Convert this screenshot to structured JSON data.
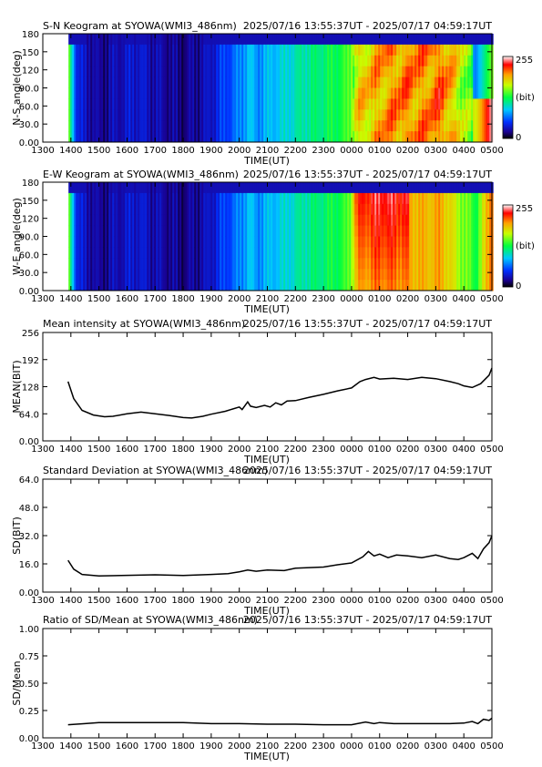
{
  "x_ticks": [
    "1300",
    "1400",
    "1500",
    "1600",
    "1700",
    "1800",
    "1900",
    "2000",
    "2100",
    "2200",
    "2300",
    "0000",
    "0100",
    "0200",
    "0300",
    "0400",
    "0500"
  ],
  "x_label": "TIME(UT)",
  "time_range": "2025/07/16 13:55:37UT - 2025/07/17 04:59:17UT",
  "colorbar": {
    "max": "255",
    "unit": "(bit)",
    "min": "0"
  },
  "chart_data": [
    {
      "type": "heatmap",
      "title": "S-N Keogram at SYOWA(WMI3_486nm)",
      "ylabel": "N-S angle(deg)",
      "y_ticks": [
        "180",
        "150",
        "120",
        "90.0",
        "60.0",
        "30.0",
        "0.00"
      ],
      "ylim": [
        0,
        180
      ],
      "xlim": [
        "1300",
        "0500"
      ],
      "data_start": "1355",
      "colormap": "rainbow 0-255",
      "profile": [
        [
          13.9,
          140
        ],
        [
          14.2,
          40
        ],
        [
          15.0,
          20
        ],
        [
          15.5,
          28
        ],
        [
          16.3,
          38
        ],
        [
          17.0,
          28
        ],
        [
          18.0,
          18
        ],
        [
          18.8,
          30
        ],
        [
          19.5,
          55
        ],
        [
          20.0,
          70
        ],
        [
          20.3,
          90
        ],
        [
          20.6,
          75
        ],
        [
          21.0,
          85
        ],
        [
          21.6,
          95
        ],
        [
          22.0,
          105
        ],
        [
          23.0,
          120
        ],
        [
          23.8,
          135
        ],
        [
          24.2,
          180
        ],
        [
          25.0,
          195
        ],
        [
          25.8,
          205
        ],
        [
          26.5,
          200
        ],
        [
          27.2,
          210
        ],
        [
          27.8,
          170
        ],
        [
          28.4,
          130
        ],
        [
          29.0,
          215
        ]
      ]
    },
    {
      "type": "heatmap",
      "title": "E-W Keogram at SYOWA(WMI3_486nm)",
      "ylabel": "W-E angle(deg)",
      "y_ticks": [
        "180",
        "150",
        "120",
        "90.0",
        "60.0",
        "30.0",
        "0.00"
      ],
      "ylim": [
        0,
        180
      ],
      "xlim": [
        "1300",
        "0500"
      ],
      "data_start": "1355",
      "colormap": "rainbow 0-255",
      "profile": [
        [
          13.9,
          140
        ],
        [
          14.2,
          40
        ],
        [
          15.0,
          20
        ],
        [
          15.5,
          28
        ],
        [
          16.3,
          38
        ],
        [
          17.0,
          28
        ],
        [
          18.0,
          18
        ],
        [
          18.8,
          30
        ],
        [
          19.5,
          55
        ],
        [
          20.0,
          70
        ],
        [
          20.3,
          90
        ],
        [
          20.6,
          75
        ],
        [
          21.0,
          85
        ],
        [
          21.6,
          95
        ],
        [
          22.0,
          105
        ],
        [
          23.0,
          120
        ],
        [
          23.8,
          135
        ],
        [
          24.2,
          190
        ],
        [
          25.0,
          205
        ],
        [
          25.8,
          200
        ],
        [
          26.5,
          190
        ],
        [
          27.2,
          195
        ],
        [
          27.8,
          160
        ],
        [
          28.4,
          130
        ],
        [
          29.0,
          220
        ]
      ]
    },
    {
      "type": "line",
      "title": "Mean intensity at SYOWA(WMI3_486nm)",
      "ylabel": "MEAN(BIT)",
      "y_ticks": [
        "256",
        "192",
        "128",
        "64.0",
        "0.00"
      ],
      "ylim": [
        0,
        256
      ],
      "series": [
        {
          "values": [
            [
              13.9,
              140
            ],
            [
              14.1,
              100
            ],
            [
              14.4,
              72
            ],
            [
              14.8,
              61
            ],
            [
              15.2,
              57
            ],
            [
              15.5,
              58
            ],
            [
              16.0,
              64
            ],
            [
              16.5,
              68
            ],
            [
              17.0,
              64
            ],
            [
              17.5,
              60
            ],
            [
              18.0,
              55
            ],
            [
              18.3,
              54
            ],
            [
              18.7,
              58
            ],
            [
              19.0,
              63
            ],
            [
              19.5,
              70
            ],
            [
              20.0,
              80
            ],
            [
              20.1,
              74
            ],
            [
              20.3,
              92
            ],
            [
              20.4,
              82
            ],
            [
              20.6,
              79
            ],
            [
              20.9,
              84
            ],
            [
              21.1,
              80
            ],
            [
              21.3,
              90
            ],
            [
              21.5,
              85
            ],
            [
              21.7,
              94
            ],
            [
              22.0,
              95
            ],
            [
              22.5,
              103
            ],
            [
              23.0,
              110
            ],
            [
              23.5,
              118
            ],
            [
              24.0,
              125
            ],
            [
              24.3,
              140
            ],
            [
              24.5,
              145
            ],
            [
              24.8,
              150
            ],
            [
              25.0,
              146
            ],
            [
              25.5,
              148
            ],
            [
              26.0,
              145
            ],
            [
              26.5,
              150
            ],
            [
              27.0,
              147
            ],
            [
              27.5,
              140
            ],
            [
              27.8,
              135
            ],
            [
              28.0,
              130
            ],
            [
              28.3,
              126
            ],
            [
              28.6,
              135
            ],
            [
              28.9,
              155
            ],
            [
              29.0,
              172
            ]
          ]
        }
      ]
    },
    {
      "type": "line",
      "title": "Standard Deviation at SYOWA(WMI3_486nm)",
      "ylabel": "SD(BIT)",
      "y_ticks": [
        "64.0",
        "48.0",
        "32.0",
        "16.0",
        "0.00"
      ],
      "ylim": [
        0,
        64
      ],
      "series": [
        {
          "values": [
            [
              13.9,
              18
            ],
            [
              14.1,
              13
            ],
            [
              14.4,
              10
            ],
            [
              15.0,
              9.2
            ],
            [
              16.0,
              9.5
            ],
            [
              17.0,
              9.8
            ],
            [
              18.0,
              9.4
            ],
            [
              19.0,
              10
            ],
            [
              19.6,
              10.5
            ],
            [
              20.0,
              11.5
            ],
            [
              20.3,
              12.5
            ],
            [
              20.6,
              11.8
            ],
            [
              21.0,
              12.5
            ],
            [
              21.6,
              12.2
            ],
            [
              22.0,
              13.5
            ],
            [
              23.0,
              14.2
            ],
            [
              23.5,
              15.5
            ],
            [
              24.0,
              16.5
            ],
            [
              24.4,
              20
            ],
            [
              24.6,
              23
            ],
            [
              24.8,
              20.5
            ],
            [
              25.0,
              21.5
            ],
            [
              25.3,
              19.5
            ],
            [
              25.6,
              21
            ],
            [
              26.0,
              20.5
            ],
            [
              26.5,
              19.5
            ],
            [
              27.0,
              21
            ],
            [
              27.5,
              19
            ],
            [
              27.8,
              18.5
            ],
            [
              28.0,
              19.5
            ],
            [
              28.3,
              22
            ],
            [
              28.5,
              19
            ],
            [
              28.7,
              24.5
            ],
            [
              28.9,
              28
            ],
            [
              29.0,
              32
            ]
          ]
        }
      ]
    },
    {
      "type": "line",
      "title": "Ratio of SD/Mean at SYOWA(WMI3_486nm)",
      "ylabel": "SD/Mean",
      "y_ticks": [
        "1.00",
        "0.75",
        "0.50",
        "0.25",
        "0.00"
      ],
      "ylim": [
        0,
        1
      ],
      "series": [
        {
          "values": [
            [
              13.9,
              0.12
            ],
            [
              14.5,
              0.13
            ],
            [
              15.0,
              0.14
            ],
            [
              16.0,
              0.14
            ],
            [
              17.0,
              0.14
            ],
            [
              18.0,
              0.14
            ],
            [
              19.0,
              0.13
            ],
            [
              20.0,
              0.13
            ],
            [
              21.0,
              0.125
            ],
            [
              22.0,
              0.125
            ],
            [
              23.0,
              0.12
            ],
            [
              24.0,
              0.12
            ],
            [
              24.5,
              0.145
            ],
            [
              24.8,
              0.13
            ],
            [
              25.0,
              0.14
            ],
            [
              25.5,
              0.13
            ],
            [
              26.0,
              0.13
            ],
            [
              27.0,
              0.13
            ],
            [
              27.5,
              0.13
            ],
            [
              28.0,
              0.135
            ],
            [
              28.3,
              0.15
            ],
            [
              28.5,
              0.13
            ],
            [
              28.7,
              0.17
            ],
            [
              28.9,
              0.16
            ],
            [
              29.0,
              0.18
            ]
          ]
        }
      ]
    }
  ]
}
